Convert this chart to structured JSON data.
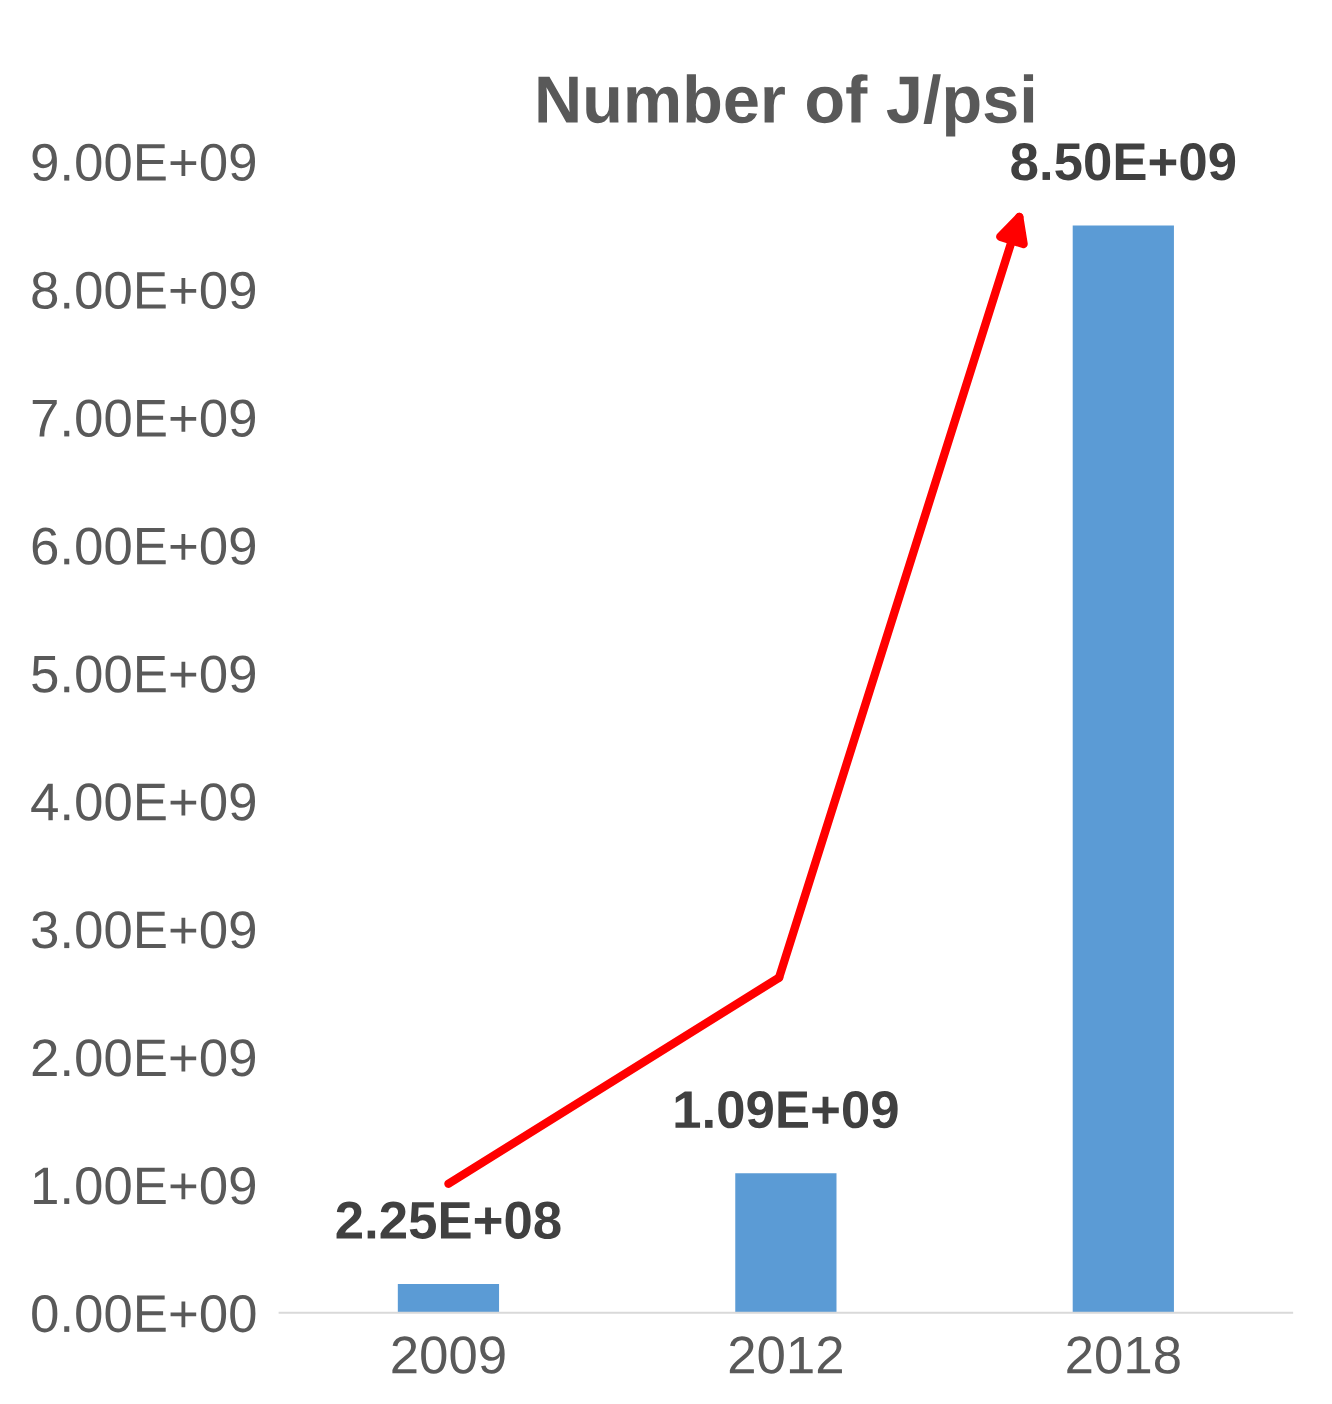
{
  "chart_data": {
    "type": "bar",
    "title": "Number of J/psi",
    "categories": [
      "2009",
      "2012",
      "2018"
    ],
    "values": [
      225000000,
      1090000000,
      8500000000
    ],
    "color": "#5b9bd5",
    "value_labels": [
      "2.25E+08",
      "1.09E+09",
      "8.50E+09"
    ],
    "ylim": [
      0,
      9000000000
    ],
    "yticks": [
      {
        "value": 0,
        "label": "0.00E+00"
      },
      {
        "value": 1000000000,
        "label": "1.00E+09"
      },
      {
        "value": 2000000000,
        "label": "2.00E+09"
      },
      {
        "value": 3000000000,
        "label": "3.00E+09"
      },
      {
        "value": 4000000000,
        "label": "4.00E+09"
      },
      {
        "value": 5000000000,
        "label": "5.00E+09"
      },
      {
        "value": 6000000000,
        "label": "6.00E+09"
      },
      {
        "value": 7000000000,
        "label": "7.00E+09"
      },
      {
        "value": 8000000000,
        "label": "8.00E+09"
      },
      {
        "value": 9000000000,
        "label": "9.00E+09"
      }
    ],
    "grid": false,
    "legend": false
  }
}
